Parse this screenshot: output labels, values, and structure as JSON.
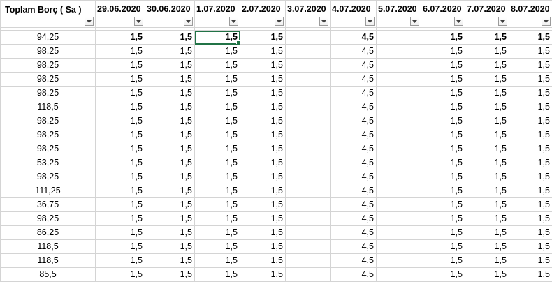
{
  "header": {
    "columns": [
      "Toplam Borç ( Sa )",
      "29.06.2020",
      "30.06.2020",
      "1.07.2020",
      "2.07.2020",
      "3.07.2020",
      "4.07.2020",
      "5.07.2020",
      "6.07.2020",
      "7.07.2020",
      "8.07.2020"
    ]
  },
  "selected_cell": {
    "row": 0,
    "col": 3
  },
  "accent_color": "#217346",
  "rows": [
    [
      "94,25",
      "1,5",
      "1,5",
      "1,5",
      "1,5",
      "",
      "4,5",
      "",
      "1,5",
      "1,5",
      "1,5"
    ],
    [
      "98,25",
      "1,5",
      "1,5",
      "1,5",
      "1,5",
      "",
      "4,5",
      "",
      "1,5",
      "1,5",
      "1,5"
    ],
    [
      "98,25",
      "1,5",
      "1,5",
      "1,5",
      "1,5",
      "",
      "4,5",
      "",
      "1,5",
      "1,5",
      "1,5"
    ],
    [
      "98,25",
      "1,5",
      "1,5",
      "1,5",
      "1,5",
      "",
      "4,5",
      "",
      "1,5",
      "1,5",
      "1,5"
    ],
    [
      "98,25",
      "1,5",
      "1,5",
      "1,5",
      "1,5",
      "",
      "4,5",
      "",
      "1,5",
      "1,5",
      "1,5"
    ],
    [
      "118,5",
      "1,5",
      "1,5",
      "1,5",
      "1,5",
      "",
      "4,5",
      "",
      "1,5",
      "1,5",
      "1,5"
    ],
    [
      "98,25",
      "1,5",
      "1,5",
      "1,5",
      "1,5",
      "",
      "4,5",
      "",
      "1,5",
      "1,5",
      "1,5"
    ],
    [
      "98,25",
      "1,5",
      "1,5",
      "1,5",
      "1,5",
      "",
      "4,5",
      "",
      "1,5",
      "1,5",
      "1,5"
    ],
    [
      "98,25",
      "1,5",
      "1,5",
      "1,5",
      "1,5",
      "",
      "4,5",
      "",
      "1,5",
      "1,5",
      "1,5"
    ],
    [
      "53,25",
      "1,5",
      "1,5",
      "1,5",
      "1,5",
      "",
      "4,5",
      "",
      "1,5",
      "1,5",
      "1,5"
    ],
    [
      "98,25",
      "1,5",
      "1,5",
      "1,5",
      "1,5",
      "",
      "4,5",
      "",
      "1,5",
      "1,5",
      "1,5"
    ],
    [
      "111,25",
      "1,5",
      "1,5",
      "1,5",
      "1,5",
      "",
      "4,5",
      "",
      "1,5",
      "1,5",
      "1,5"
    ],
    [
      "36,75",
      "1,5",
      "1,5",
      "1,5",
      "1,5",
      "",
      "4,5",
      "",
      "1,5",
      "1,5",
      "1,5"
    ],
    [
      "98,25",
      "1,5",
      "1,5",
      "1,5",
      "1,5",
      "",
      "4,5",
      "",
      "1,5",
      "1,5",
      "1,5"
    ],
    [
      "86,25",
      "1,5",
      "1,5",
      "1,5",
      "1,5",
      "",
      "4,5",
      "",
      "1,5",
      "1,5",
      "1,5"
    ],
    [
      "118,5",
      "1,5",
      "1,5",
      "1,5",
      "1,5",
      "",
      "4,5",
      "",
      "1,5",
      "1,5",
      "1,5"
    ],
    [
      "118,5",
      "1,5",
      "1,5",
      "1,5",
      "1,5",
      "",
      "4,5",
      "",
      "1,5",
      "1,5",
      "1,5"
    ],
    [
      "85,5",
      "1,5",
      "1,5",
      "1,5",
      "1,5",
      "",
      "4,5",
      "",
      "1,5",
      "1,5",
      "1,5"
    ]
  ]
}
